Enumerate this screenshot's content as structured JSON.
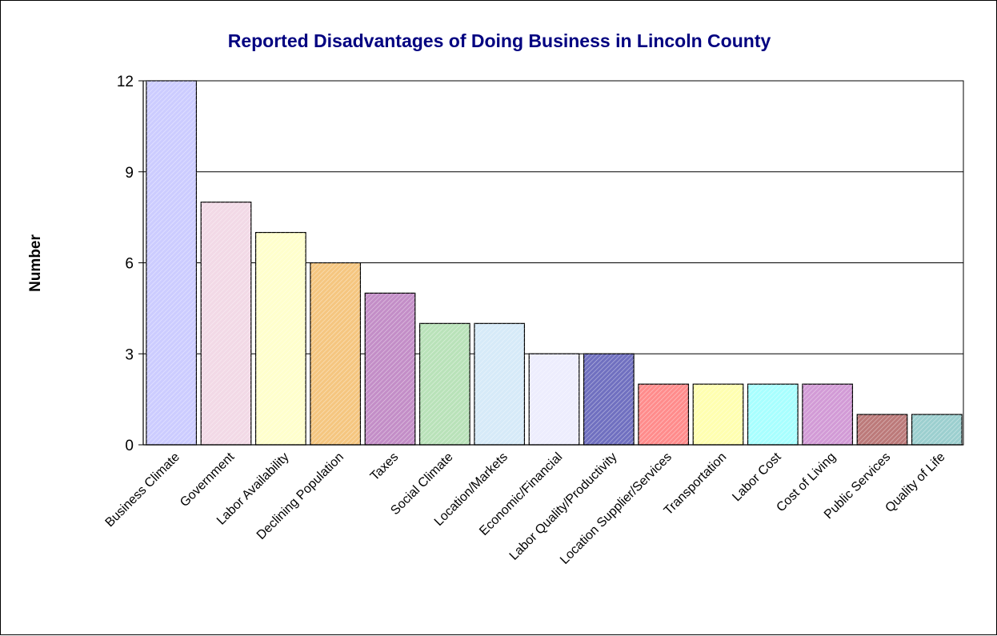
{
  "chart_data": {
    "type": "bar",
    "title": "Reported Disadvantages of Doing Business in Lincoln County",
    "xlabel": "",
    "ylabel": "Number",
    "ylim": [
      0,
      12
    ],
    "yticks": [
      0,
      3,
      6,
      9,
      12
    ],
    "grid": true,
    "legend": "none",
    "categories": [
      "Business Climate",
      "Government",
      "Labor Availability",
      "Declining Population",
      "Taxes",
      "Social Climate",
      "Location/Markets",
      "Economic/Financial",
      "Labor Quality/Productivity",
      "Location Supplier/Services",
      "Transportation",
      "Labor Cost",
      "Cost of Living",
      "Public Services",
      "Quality of Life"
    ],
    "values": [
      12,
      8,
      7,
      6,
      5,
      4,
      4,
      3,
      3,
      2,
      2,
      2,
      2,
      1,
      1
    ],
    "colors": [
      "#CCCCFF",
      "#F2D9E6",
      "#FFFFCC",
      "#F5C680",
      "#C38EC7",
      "#B9E2B9",
      "#D6EAF8",
      "#EDEDFD",
      "#7070C0",
      "#FF8C8C",
      "#FFFFB0",
      "#A8FFFF",
      "#D29BD6",
      "#BC7A7A",
      "#9CCFCF"
    ]
  }
}
